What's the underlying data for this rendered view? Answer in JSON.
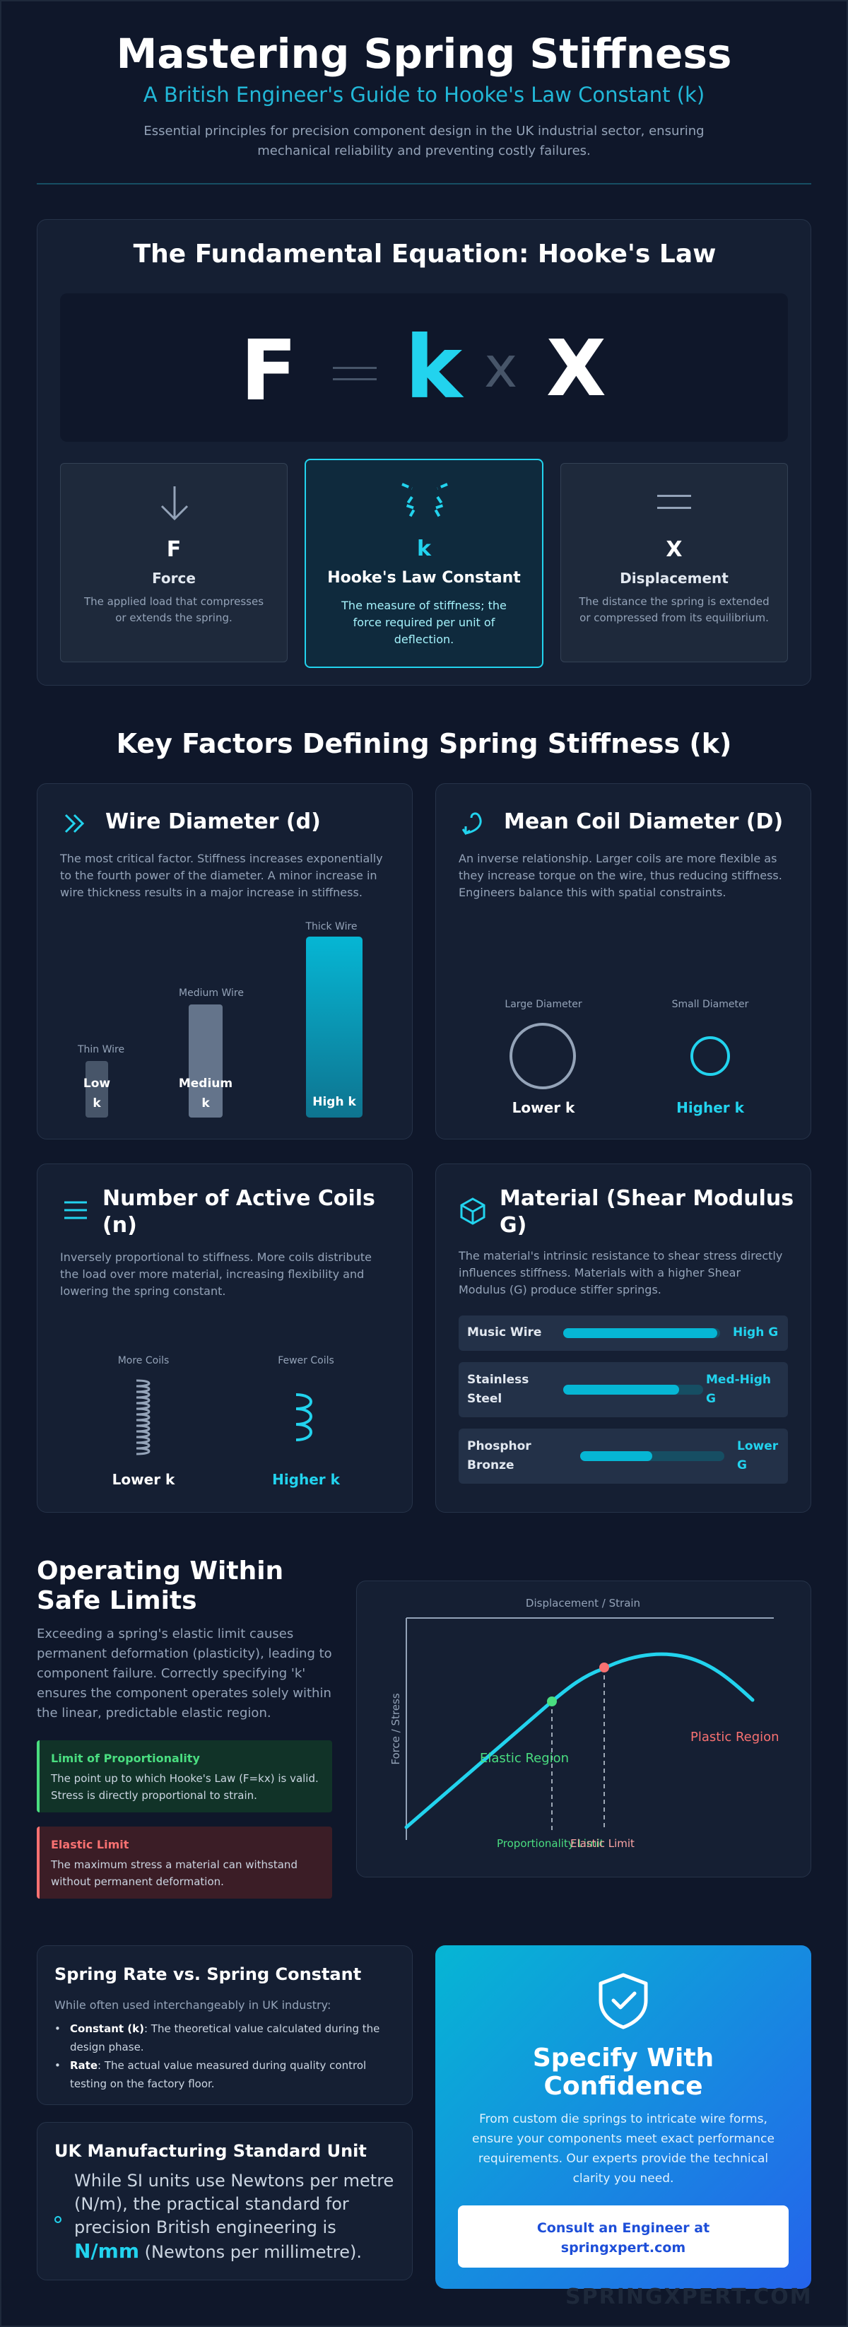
{
  "header": {
    "title": "Mastering Spring Stiffness",
    "subtitle": "A British Engineer's Guide to Hooke's Law Constant (k)",
    "intro": "Essential principles for precision component design in the UK industrial sector, ensuring mechanical reliability and preventing costly failures."
  },
  "equation": {
    "heading": "The Fundamental Equation: Hooke's Law",
    "F": "F",
    "eq": "=",
    "k": "k",
    "times": "x",
    "X": "X",
    "cards": [
      {
        "symbol": "F",
        "title": "Force",
        "desc": "The applied load that compresses or extends the spring.",
        "icon": "arrow-down-icon"
      },
      {
        "symbol": "k",
        "title": "Hooke's Law Constant",
        "desc": "The measure of stiffness; the force required per unit of deflection.",
        "icon": "spring-constant-icon"
      },
      {
        "symbol": "X",
        "title": "Displacement",
        "desc": "The distance the spring is extended or compressed from its equilibrium.",
        "icon": "equals-icon"
      }
    ]
  },
  "factors": {
    "heading": "Key Factors Defining Spring Stiffness (k)",
    "wire": {
      "title": "Wire Diameter (d)",
      "desc": "The most critical factor. Stiffness increases exponentially to the fourth power of the diameter. A minor increase in wire thickness results in a major increase in stiffness.",
      "bars": [
        {
          "label": "Thin Wire",
          "value": "Low k",
          "level": 0.2
        },
        {
          "label": "Medium Wire",
          "value": "Medium k",
          "level": 0.6
        },
        {
          "label": "Thick Wire",
          "value": "High k",
          "level": 1.0
        }
      ]
    },
    "coil_diameter": {
      "title": "Mean Coil Diameter (D)",
      "desc": "An inverse relationship. Larger coils are more flexible as they increase torque on the wire, thus reducing stiffness. Engineers balance this with spatial constraints.",
      "large_label": "Large Diameter",
      "large_value": "Lower k",
      "small_label": "Small Diameter",
      "small_value": "Higher k"
    },
    "coils": {
      "title": "Number of Active Coils (n)",
      "desc": "Inversely proportional to stiffness. More coils distribute the load over more material, increasing flexibility and lowering the spring constant.",
      "more_label": "More Coils",
      "more_value": "Lower k",
      "fewer_label": "Fewer Coils",
      "fewer_value": "Higher k"
    },
    "material": {
      "title": "Material (Shear Modulus G)",
      "desc": "The material's intrinsic resistance to shear stress directly influences stiffness. Materials with a higher Shear Modulus (G) produce stiffer springs.",
      "rows": [
        {
          "name": "Music Wire",
          "value": "High G",
          "level": 0.98
        },
        {
          "name": "Stainless Steel",
          "value": "Med-High G",
          "level": 0.83
        },
        {
          "name": "Phosphor Bronze",
          "value": "Lower G",
          "level": 0.5
        }
      ]
    }
  },
  "limits": {
    "heading": "Operating Within Safe Limits",
    "desc": "Exceeding a spring's elastic limit causes permanent deformation (plasticity), leading to component failure. Correctly specifying 'k' ensures the component operates solely within the linear, predictable elastic region.",
    "prop_title": "Limit of Proportionality",
    "prop_desc": "The point up to which Hooke's Law (F=kx) is valid. Stress is directly proportional to strain.",
    "elastic_title": "Elastic Limit",
    "elastic_desc": "The maximum stress a material can withstand without permanent deformation.",
    "chart": {
      "xlabel": "Displacement / Strain",
      "ylabel": "Force / Stress",
      "elastic_region": "Elastic Region",
      "plastic_region": "Plastic Region",
      "prop_limit": "Proportionality Limit",
      "elastic_limit": "Elastic Limit"
    }
  },
  "rate": {
    "title": "Spring Rate vs. Spring Constant",
    "intro": "While often used interchangeably in UK industry:",
    "items": [
      {
        "term": "Constant (k)",
        "text": ": The theoretical value calculated during the design phase."
      },
      {
        "term": "Rate",
        "text": ": The actual value measured during quality control testing on the factory floor."
      }
    ]
  },
  "unit": {
    "title": "UK Manufacturing Standard Unit",
    "text": "While SI units use Newtons per metre (N/m), the practical standard for precision British engineering is",
    "unit": "N/mm",
    "unit_suffix": "(Newtons per millimetre)."
  },
  "cta": {
    "title": "Specify With Confidence",
    "desc": "From custom die springs to intricate wire forms, ensure your components meet exact performance requirements. Our experts provide the technical clarity you need.",
    "button": "Consult an Engineer at springxpert.com",
    "icon": "shield-check-icon"
  },
  "watermark": "SPRINGXPERT.COM",
  "colors": {
    "background": "#0f172a",
    "accent": "#22d3ee",
    "green": "#4ade80",
    "red": "#f87171"
  }
}
